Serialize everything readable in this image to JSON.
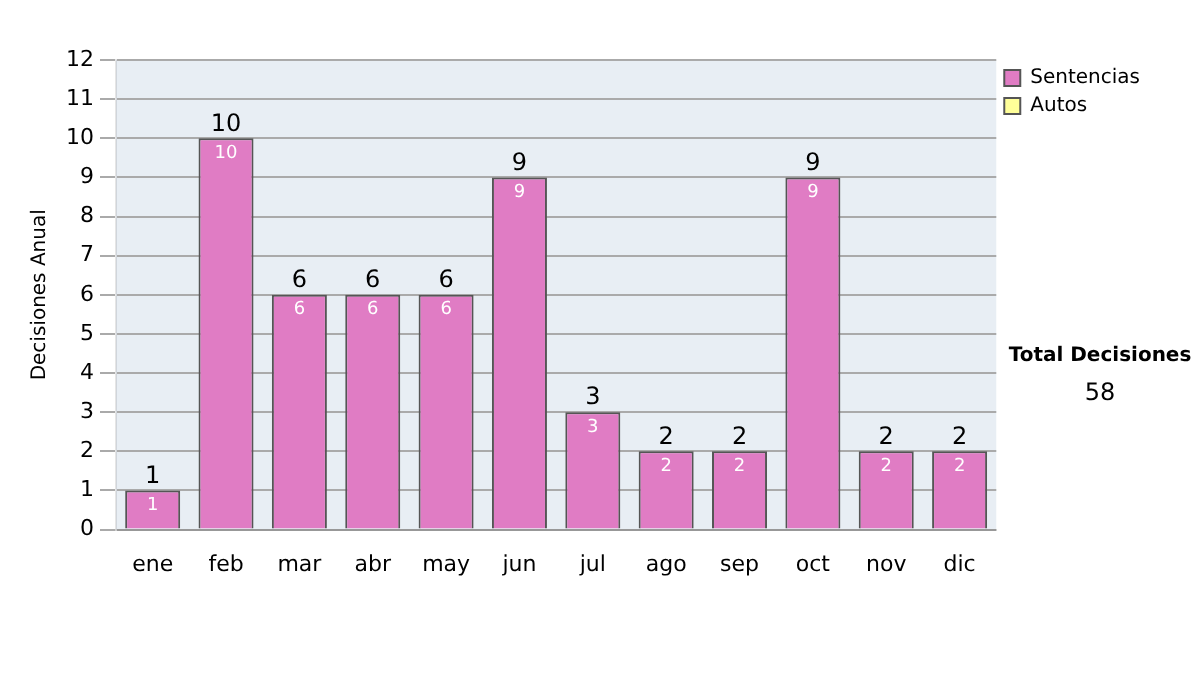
{
  "chart_data": {
    "type": "bar",
    "ylabel": "Decisiones Anual",
    "categories": [
      "ene",
      "feb",
      "mar",
      "abr",
      "may",
      "jun",
      "jul",
      "ago",
      "sep",
      "oct",
      "nov",
      "dic"
    ],
    "series": [
      {
        "name": "Sentencias",
        "color": "#e07cc4",
        "values": [
          1,
          10,
          6,
          6,
          6,
          9,
          3,
          2,
          2,
          9,
          2,
          2
        ],
        "value_labels": [
          "1",
          "10",
          "6",
          "6",
          "6",
          "9",
          "3",
          "2",
          "2",
          "9",
          "2",
          "2"
        ]
      },
      {
        "name": "Autos",
        "color": "#ffff99",
        "values": [
          0,
          0,
          0,
          0,
          0,
          0,
          0,
          0,
          0,
          0,
          0,
          0
        ]
      }
    ],
    "stacked": true,
    "totals": [
      "1",
      "10",
      "6",
      "6",
      "6",
      "9",
      "3",
      "2",
      "2",
      "9",
      "2",
      "2"
    ],
    "ylim": [
      0,
      12
    ],
    "yticks": [
      0,
      1,
      2,
      3,
      4,
      5,
      6,
      7,
      8,
      9,
      10,
      11,
      12
    ],
    "grid": "y",
    "legend": "right",
    "annotations": [
      "Total Decisiones",
      "58"
    ]
  }
}
